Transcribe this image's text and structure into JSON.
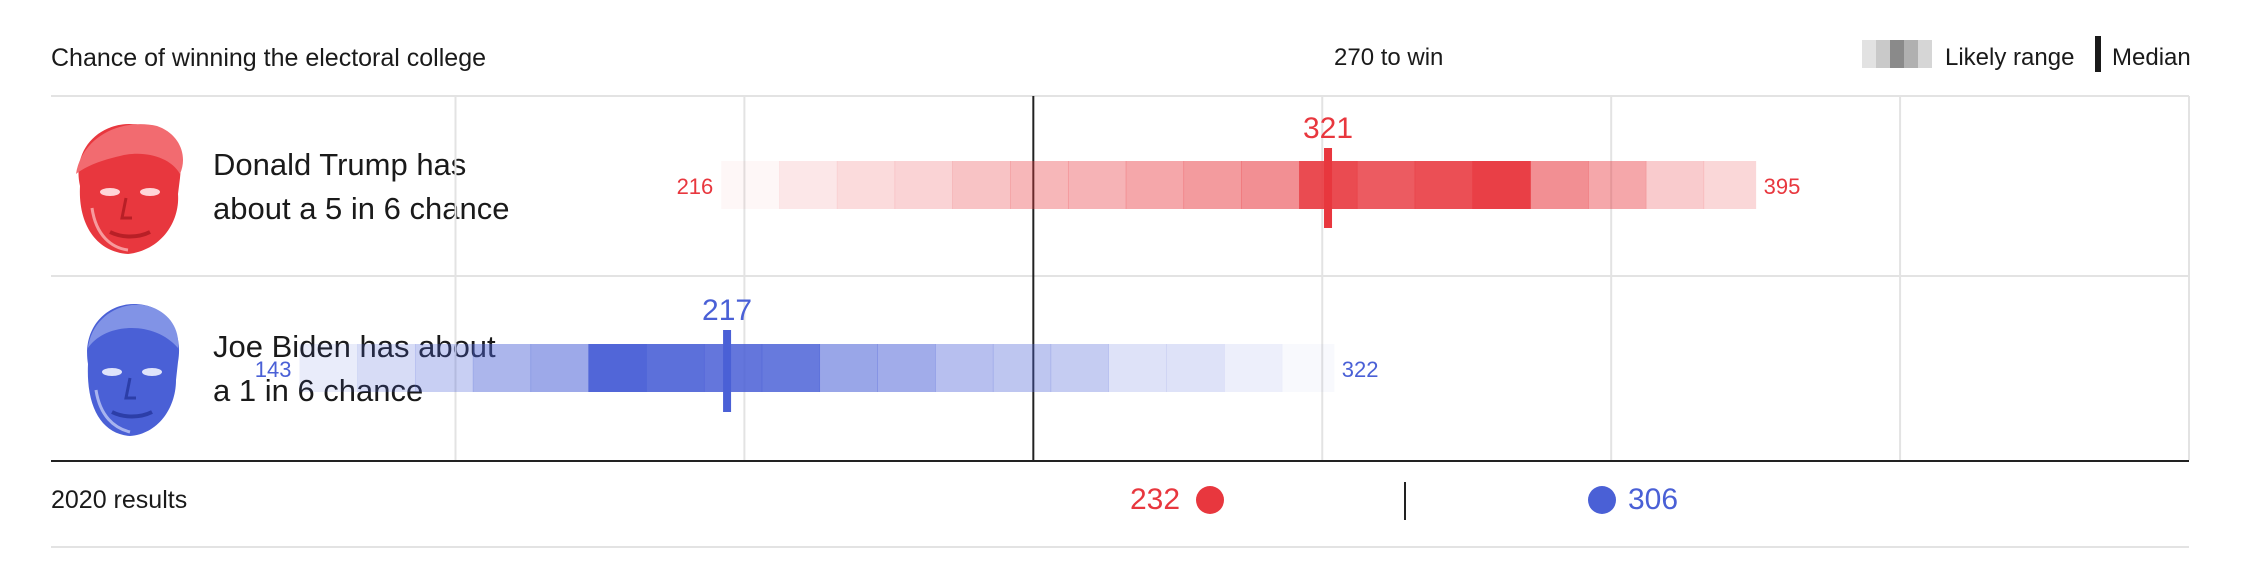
{
  "header": {
    "title": "Chance of winning the electoral college",
    "threshold_label": "270 to win",
    "legend_range_label": "Likely range",
    "legend_median_label": "Median"
  },
  "candidates": [
    {
      "name_line1": "Donald Trump has",
      "name_line2": "about a 5 in 6 chance",
      "portrait_icon": "trump-portrait-icon"
    },
    {
      "name_line1": "Joe Biden has about",
      "name_line2": "a 1 in 6 chance",
      "portrait_icon": "biden-portrait-icon"
    }
  ],
  "footer": {
    "title": "2020 results",
    "trump_result": "232",
    "biden_result": "306"
  },
  "colors": {
    "trump": "#e8373e",
    "biden": "#4a60d6",
    "legend_gray": "#8a8a8a"
  },
  "chart_data": {
    "type": "heatmap",
    "title": "Chance of winning the electoral college",
    "xlabel": "",
    "ylabel": "",
    "x_range": [
      100,
      470
    ],
    "grid": true,
    "threshold": 270,
    "threshold_label": "270 to win",
    "bin_width": 10,
    "series": [
      {
        "name": "Donald Trump",
        "min": 216,
        "max": 395,
        "median": 321,
        "min_label": "216",
        "max_label": "395",
        "median_label": "321",
        "bin_starts": [
          216,
          226,
          236,
          246,
          256,
          266,
          276,
          286,
          296,
          306,
          316,
          326,
          336,
          346,
          356,
          366,
          376,
          386
        ],
        "intensity": [
          0.04,
          0.12,
          0.18,
          0.22,
          0.3,
          0.36,
          0.38,
          0.44,
          0.5,
          0.56,
          0.9,
          0.82,
          0.88,
          0.96,
          0.56,
          0.44,
          0.26,
          0.2
        ]
      },
      {
        "name": "Joe Biden",
        "min": 143,
        "max": 322,
        "median": 217,
        "min_label": "143",
        "max_label": "322",
        "median_label": "217",
        "bin_starts": [
          143,
          153,
          163,
          173,
          183,
          193,
          203,
          213,
          223,
          233,
          243,
          253,
          263,
          273,
          283,
          293,
          303,
          313
        ],
        "intensity": [
          0.12,
          0.22,
          0.3,
          0.46,
          0.54,
          0.96,
          0.9,
          0.86,
          0.84,
          0.56,
          0.52,
          0.4,
          0.36,
          0.32,
          0.18,
          0.18,
          0.1,
          0.04
        ]
      }
    ]
  }
}
